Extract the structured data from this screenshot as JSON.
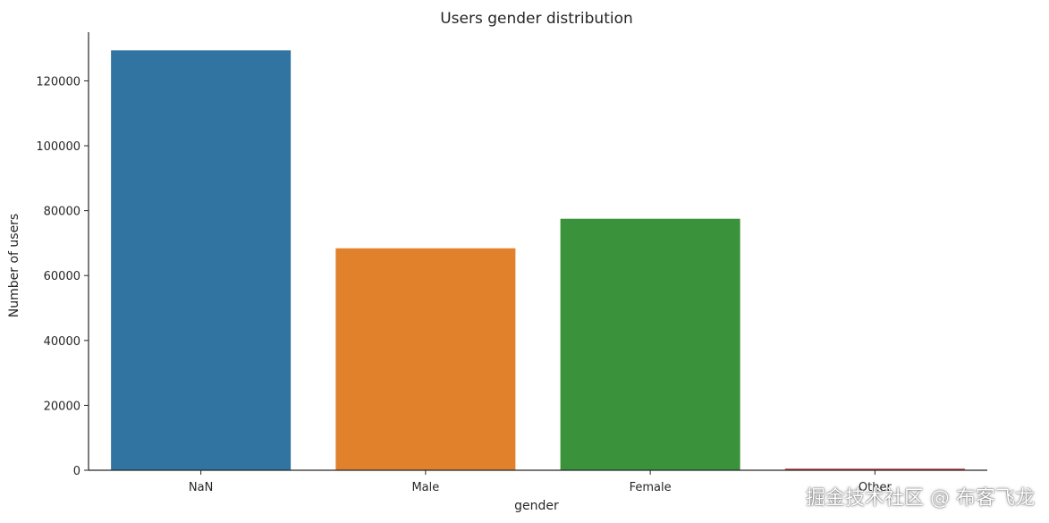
{
  "chart_data": {
    "type": "bar",
    "title": "Users gender distribution",
    "xlabel": "gender",
    "ylabel": "Number of users",
    "categories": [
      "NaN",
      "Male",
      "Female",
      "Other"
    ],
    "values": [
      129400,
      68400,
      77500,
      500
    ],
    "ylim": [
      0,
      135000
    ],
    "yticks": [
      0,
      20000,
      40000,
      60000,
      80000,
      100000,
      120000
    ],
    "colors": [
      "#3274a1",
      "#e1812c",
      "#3a923a",
      "#c03d3e"
    ],
    "grid": false,
    "legend": "none"
  },
  "watermark": "掘金技术社区 @ 布客飞龙"
}
